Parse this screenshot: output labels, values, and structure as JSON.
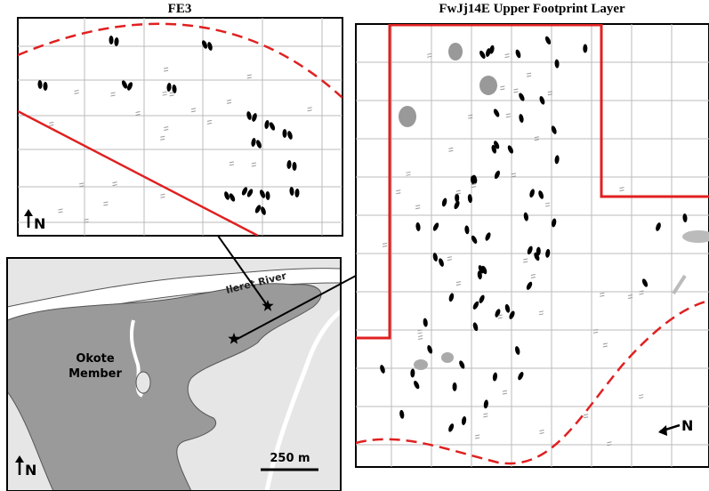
{
  "panels": {
    "fe3": {
      "title": "FE3",
      "north": "N"
    },
    "fwjj14e": {
      "title": "FwJj14E Upper Footprint Layer",
      "north": "N"
    },
    "map": {
      "river": "Ileret River",
      "member": [
        "Okote",
        "Member"
      ],
      "north": "N",
      "scale": "250 m"
    }
  }
}
